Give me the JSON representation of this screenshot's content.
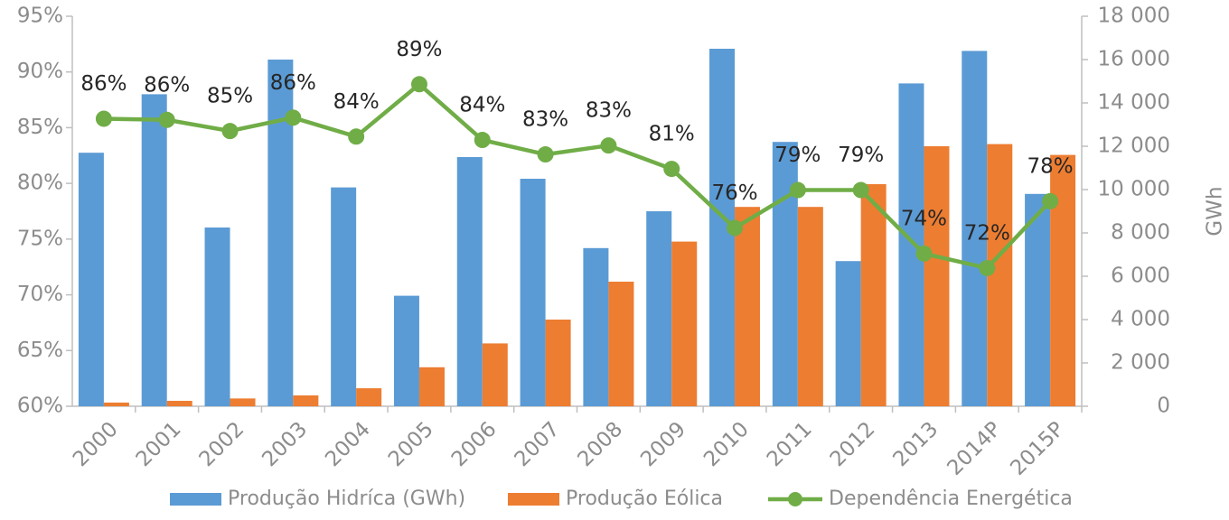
{
  "chart_data": {
    "type": "bar-line",
    "categories": [
      "2000",
      "2001",
      "2002",
      "2003",
      "2004",
      "2005",
      "2006",
      "2007",
      "2008",
      "2009",
      "2010",
      "2011",
      "2012",
      "2013",
      "2014P",
      "2015P"
    ],
    "series": [
      {
        "name": "Produção Hidríca (GWh)",
        "type": "bar",
        "axis": "y2",
        "color": "#5b9bd5",
        "values": [
          11700,
          14400,
          8250,
          16000,
          10100,
          5100,
          11500,
          10500,
          7300,
          9000,
          16500,
          12200,
          6700,
          14900,
          16400,
          9800
        ]
      },
      {
        "name": "Produção Eólica",
        "type": "bar",
        "axis": "y2",
        "color": "#ed7d31",
        "values": [
          170,
          250,
          360,
          500,
          830,
          1800,
          2900,
          4000,
          5750,
          7600,
          9200,
          9200,
          10250,
          12000,
          12100,
          11600
        ]
      },
      {
        "name": "Dependência Energética",
        "type": "line",
        "axis": "y",
        "color": "#70ad47",
        "values": [
          85.8,
          85.7,
          84.7,
          85.9,
          84.2,
          88.9,
          83.9,
          82.6,
          83.4,
          81.3,
          76.0,
          79.4,
          79.4,
          73.7,
          72.4,
          78.4
        ],
        "value_labels": [
          "86%",
          "86%",
          "85%",
          "86%",
          "84%",
          "89%",
          "84%",
          "83%",
          "83%",
          "81%",
          "76%",
          "79%",
          "79%",
          "74%",
          "72%",
          "78%"
        ]
      }
    ],
    "ylim": [
      60,
      95
    ],
    "yticks": [
      {
        "value": 60,
        "label": "60%"
      },
      {
        "value": 65,
        "label": "65%"
      },
      {
        "value": 70,
        "label": "70%"
      },
      {
        "value": 75,
        "label": "75%"
      },
      {
        "value": 80,
        "label": "80%"
      },
      {
        "value": 85,
        "label": "85%"
      },
      {
        "value": 90,
        "label": "90%"
      },
      {
        "value": 95,
        "label": "95%"
      }
    ],
    "y2lim": [
      0,
      18000
    ],
    "y2ticks": [
      0,
      {
        "value": 2000,
        "label": "2 000"
      },
      {
        "value": 4000,
        "label": "4 000"
      },
      {
        "value": 6000,
        "label": "6 000"
      },
      {
        "value": 8000,
        "label": "8 000"
      },
      {
        "value": 10000,
        "label": "10 000"
      },
      {
        "value": 12000,
        "label": "12 000"
      },
      {
        "value": 14000,
        "label": "14 000"
      },
      {
        "value": 16000,
        "label": "16 000"
      },
      {
        "value": 18000,
        "label": "18 000"
      }
    ],
    "y2label": "GWh",
    "legend": "bottom"
  }
}
